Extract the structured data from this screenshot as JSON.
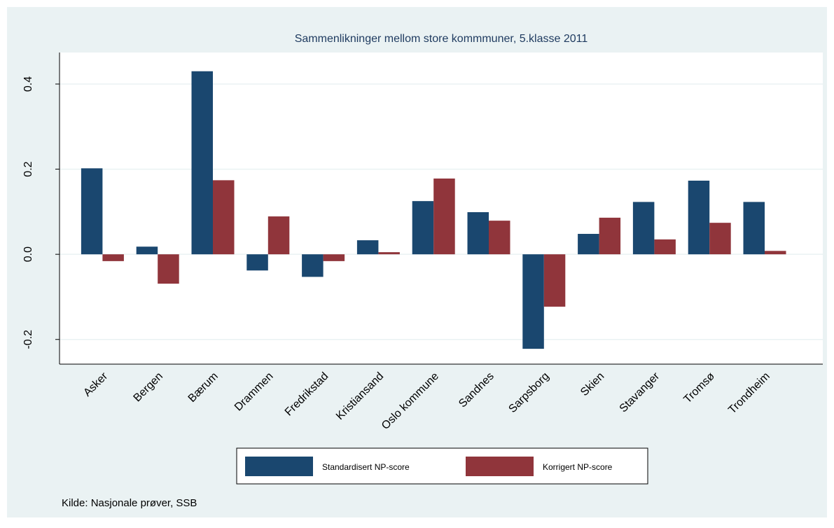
{
  "chart_data": {
    "type": "bar",
    "title": "Sammenlikninger mellom store kommmuner, 5.klasse 2011",
    "categories": [
      "Asker",
      "Bergen",
      "Bærum",
      "Drammen",
      "Fredrikstad",
      "Kristiansand",
      "Oslo kommune",
      "Sandnes",
      "Sarpsborg",
      "Skien",
      "Stavanger",
      "Tromsø",
      "Trondheim"
    ],
    "series": [
      {
        "name": "Standardisert NP-score",
        "color": "#1a476f",
        "values": [
          0.202,
          0.018,
          0.43,
          -0.038,
          -0.053,
          0.033,
          0.125,
          0.099,
          -0.222,
          0.048,
          0.123,
          0.173,
          0.123
        ]
      },
      {
        "name": "Korrigert NP-score",
        "color": "#90353b",
        "values": [
          -0.016,
          -0.069,
          0.174,
          0.089,
          -0.016,
          0.005,
          0.178,
          0.079,
          -0.123,
          0.086,
          0.035,
          0.074,
          0.008
        ]
      }
    ],
    "ylim": [
      -0.258,
      0.474
    ],
    "yticks": [
      -0.2,
      {
        "value": 0,
        "label": "0.0"
      },
      0.2,
      0.4
    ],
    "grid": true,
    "note": "Kilde: Nasjonale prøver, SSB"
  }
}
